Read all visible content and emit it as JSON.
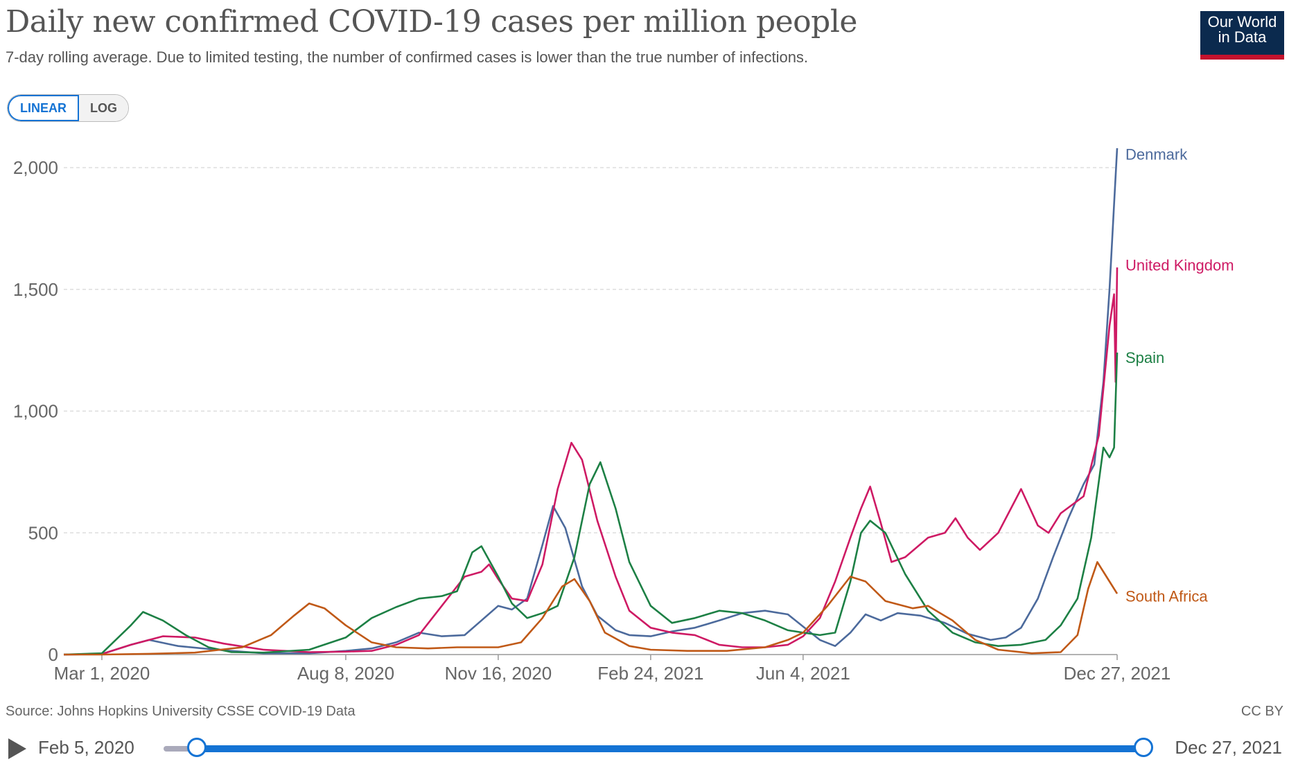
{
  "header": {
    "title": "Daily new confirmed COVID-19 cases per million people",
    "subtitle": "7-day rolling average. Due to limited testing, the number of confirmed cases is lower than the true number of infections.",
    "logo_line1": "Our World",
    "logo_line2": "in Data"
  },
  "controls": {
    "linear_label": "LINEAR",
    "log_label": "LOG",
    "selected": "LINEAR"
  },
  "footer": {
    "source": "Source: Johns Hopkins University CSSE COVID-19 Data",
    "license": "CC BY"
  },
  "timeline": {
    "start_date": "Feb 5, 2020",
    "end_date": "Dec 27, 2021"
  },
  "chart_data": {
    "type": "line",
    "title": "Daily new confirmed COVID-19 cases per million people",
    "ylim": [
      0,
      2000
    ],
    "yticks": [
      0,
      500,
      1000,
      1500,
      2000
    ],
    "ytick_labels": [
      "0",
      "500",
      "1,000",
      "1,500",
      "2,000"
    ],
    "xrange": [
      "2020-02-05",
      "2021-12-27"
    ],
    "xticks": [
      {
        "date": "2020-03-01",
        "label": "Mar 1, 2020"
      },
      {
        "date": "2020-08-08",
        "label": "Aug 8, 2020"
      },
      {
        "date": "2020-11-16",
        "label": "Nov 16, 2020"
      },
      {
        "date": "2021-02-24",
        "label": "Feb 24, 2021"
      },
      {
        "date": "2021-06-04",
        "label": "Jun 4, 2021"
      },
      {
        "date": "2021-12-27",
        "label": "Dec 27, 2021"
      }
    ],
    "grid": true,
    "legend": "end-labels",
    "series": [
      {
        "name": "Denmark",
        "color": "#4c6a9c",
        "points": [
          [
            "2020-02-05",
            0
          ],
          [
            "2020-03-01",
            2
          ],
          [
            "2020-03-20",
            40
          ],
          [
            "2020-04-01",
            60
          ],
          [
            "2020-04-20",
            35
          ],
          [
            "2020-05-15",
            20
          ],
          [
            "2020-06-15",
            5
          ],
          [
            "2020-07-15",
            5
          ],
          [
            "2020-08-08",
            15
          ],
          [
            "2020-08-25",
            25
          ],
          [
            "2020-09-10",
            50
          ],
          [
            "2020-09-25",
            90
          ],
          [
            "2020-10-10",
            75
          ],
          [
            "2020-10-25",
            80
          ],
          [
            "2020-11-05",
            140
          ],
          [
            "2020-11-16",
            200
          ],
          [
            "2020-11-25",
            185
          ],
          [
            "2020-12-05",
            230
          ],
          [
            "2020-12-15",
            450
          ],
          [
            "2020-12-22",
            610
          ],
          [
            "2020-12-30",
            520
          ],
          [
            "2021-01-10",
            280
          ],
          [
            "2021-01-20",
            160
          ],
          [
            "2021-02-01",
            100
          ],
          [
            "2021-02-10",
            80
          ],
          [
            "2021-02-24",
            75
          ],
          [
            "2021-03-10",
            95
          ],
          [
            "2021-03-25",
            110
          ],
          [
            "2021-04-10",
            140
          ],
          [
            "2021-04-25",
            170
          ],
          [
            "2021-05-10",
            180
          ],
          [
            "2021-05-25",
            165
          ],
          [
            "2021-06-04",
            115
          ],
          [
            "2021-06-15",
            60
          ],
          [
            "2021-06-25",
            35
          ],
          [
            "2021-07-05",
            90
          ],
          [
            "2021-07-15",
            165
          ],
          [
            "2021-07-25",
            140
          ],
          [
            "2021-08-05",
            170
          ],
          [
            "2021-08-20",
            160
          ],
          [
            "2021-09-05",
            130
          ],
          [
            "2021-09-20",
            85
          ],
          [
            "2021-10-05",
            60
          ],
          [
            "2021-10-15",
            70
          ],
          [
            "2021-10-25",
            110
          ],
          [
            "2021-11-05",
            230
          ],
          [
            "2021-11-15",
            400
          ],
          [
            "2021-11-25",
            560
          ],
          [
            "2021-12-05",
            700
          ],
          [
            "2021-12-12",
            780
          ],
          [
            "2021-12-18",
            1120
          ],
          [
            "2021-12-22",
            1500
          ],
          [
            "2021-12-25",
            1850
          ],
          [
            "2021-12-27",
            2080
          ]
        ]
      },
      {
        "name": "United Kingdom",
        "color": "#ce1a64",
        "points": [
          [
            "2020-02-05",
            0
          ],
          [
            "2020-03-01",
            2
          ],
          [
            "2020-03-20",
            40
          ],
          [
            "2020-04-10",
            75
          ],
          [
            "2020-05-01",
            70
          ],
          [
            "2020-05-20",
            45
          ],
          [
            "2020-06-15",
            20
          ],
          [
            "2020-07-15",
            10
          ],
          [
            "2020-08-08",
            12
          ],
          [
            "2020-08-25",
            15
          ],
          [
            "2020-09-10",
            40
          ],
          [
            "2020-09-25",
            80
          ],
          [
            "2020-10-10",
            200
          ],
          [
            "2020-10-25",
            320
          ],
          [
            "2020-11-05",
            340
          ],
          [
            "2020-11-10",
            370
          ],
          [
            "2020-11-16",
            310
          ],
          [
            "2020-11-25",
            230
          ],
          [
            "2020-12-05",
            220
          ],
          [
            "2020-12-15",
            370
          ],
          [
            "2020-12-25",
            680
          ],
          [
            "2021-01-03",
            870
          ],
          [
            "2021-01-10",
            800
          ],
          [
            "2021-01-20",
            550
          ],
          [
            "2021-02-01",
            320
          ],
          [
            "2021-02-10",
            180
          ],
          [
            "2021-02-24",
            110
          ],
          [
            "2021-03-10",
            90
          ],
          [
            "2021-03-25",
            80
          ],
          [
            "2021-04-10",
            40
          ],
          [
            "2021-04-25",
            30
          ],
          [
            "2021-05-10",
            30
          ],
          [
            "2021-05-25",
            40
          ],
          [
            "2021-06-04",
            75
          ],
          [
            "2021-06-15",
            150
          ],
          [
            "2021-06-25",
            300
          ],
          [
            "2021-07-05",
            480
          ],
          [
            "2021-07-12",
            600
          ],
          [
            "2021-07-18",
            690
          ],
          [
            "2021-07-25",
            540
          ],
          [
            "2021-08-01",
            380
          ],
          [
            "2021-08-10",
            400
          ],
          [
            "2021-08-25",
            480
          ],
          [
            "2021-09-05",
            500
          ],
          [
            "2021-09-12",
            560
          ],
          [
            "2021-09-20",
            480
          ],
          [
            "2021-09-28",
            430
          ],
          [
            "2021-10-10",
            500
          ],
          [
            "2021-10-20",
            620
          ],
          [
            "2021-10-25",
            680
          ],
          [
            "2021-11-05",
            530
          ],
          [
            "2021-11-12",
            500
          ],
          [
            "2021-11-20",
            580
          ],
          [
            "2021-12-05",
            650
          ],
          [
            "2021-12-15",
            900
          ],
          [
            "2021-12-22",
            1350
          ],
          [
            "2021-12-25",
            1480
          ],
          [
            "2021-12-26",
            1120
          ],
          [
            "2021-12-27",
            1590
          ]
        ]
      },
      {
        "name": "Spain",
        "color": "#1d8045",
        "points": [
          [
            "2020-02-05",
            0
          ],
          [
            "2020-03-01",
            5
          ],
          [
            "2020-03-20",
            120
          ],
          [
            "2020-03-28",
            175
          ],
          [
            "2020-04-10",
            140
          ],
          [
            "2020-04-25",
            80
          ],
          [
            "2020-05-10",
            30
          ],
          [
            "2020-05-25",
            10
          ],
          [
            "2020-06-15",
            8
          ],
          [
            "2020-07-15",
            20
          ],
          [
            "2020-08-08",
            70
          ],
          [
            "2020-08-25",
            150
          ],
          [
            "2020-09-10",
            195
          ],
          [
            "2020-09-25",
            230
          ],
          [
            "2020-10-10",
            240
          ],
          [
            "2020-10-20",
            260
          ],
          [
            "2020-10-30",
            420
          ],
          [
            "2020-11-05",
            445
          ],
          [
            "2020-11-16",
            320
          ],
          [
            "2020-11-25",
            210
          ],
          [
            "2020-12-05",
            150
          ],
          [
            "2020-12-15",
            170
          ],
          [
            "2020-12-25",
            200
          ],
          [
            "2021-01-05",
            400
          ],
          [
            "2021-01-15",
            700
          ],
          [
            "2021-01-22",
            790
          ],
          [
            "2021-02-01",
            600
          ],
          [
            "2021-02-10",
            380
          ],
          [
            "2021-02-24",
            200
          ],
          [
            "2021-03-10",
            130
          ],
          [
            "2021-03-25",
            150
          ],
          [
            "2021-04-10",
            180
          ],
          [
            "2021-04-25",
            170
          ],
          [
            "2021-05-10",
            140
          ],
          [
            "2021-05-25",
            100
          ],
          [
            "2021-06-04",
            90
          ],
          [
            "2021-06-15",
            80
          ],
          [
            "2021-06-25",
            90
          ],
          [
            "2021-07-05",
            300
          ],
          [
            "2021-07-12",
            500
          ],
          [
            "2021-07-18",
            550
          ],
          [
            "2021-07-28",
            500
          ],
          [
            "2021-08-10",
            330
          ],
          [
            "2021-08-25",
            180
          ],
          [
            "2021-09-10",
            90
          ],
          [
            "2021-09-25",
            50
          ],
          [
            "2021-10-10",
            35
          ],
          [
            "2021-10-25",
            40
          ],
          [
            "2021-11-10",
            60
          ],
          [
            "2021-11-20",
            120
          ],
          [
            "2021-12-01",
            230
          ],
          [
            "2021-12-10",
            480
          ],
          [
            "2021-12-18",
            850
          ],
          [
            "2021-12-22",
            810
          ],
          [
            "2021-12-25",
            850
          ],
          [
            "2021-12-27",
            1240
          ]
        ]
      },
      {
        "name": "South Africa",
        "color": "#c05917",
        "points": [
          [
            "2020-02-05",
            0
          ],
          [
            "2020-03-01",
            0
          ],
          [
            "2020-04-01",
            3
          ],
          [
            "2020-05-01",
            8
          ],
          [
            "2020-06-01",
            30
          ],
          [
            "2020-06-20",
            80
          ],
          [
            "2020-07-05",
            160
          ],
          [
            "2020-07-15",
            210
          ],
          [
            "2020-07-25",
            190
          ],
          [
            "2020-08-08",
            120
          ],
          [
            "2020-08-25",
            50
          ],
          [
            "2020-09-10",
            30
          ],
          [
            "2020-10-01",
            25
          ],
          [
            "2020-10-20",
            30
          ],
          [
            "2020-11-16",
            30
          ],
          [
            "2020-12-01",
            50
          ],
          [
            "2020-12-15",
            150
          ],
          [
            "2020-12-28",
            280
          ],
          [
            "2021-01-05",
            310
          ],
          [
            "2021-01-15",
            220
          ],
          [
            "2021-01-25",
            90
          ],
          [
            "2021-02-10",
            35
          ],
          [
            "2021-02-24",
            20
          ],
          [
            "2021-03-20",
            15
          ],
          [
            "2021-04-15",
            15
          ],
          [
            "2021-05-10",
            30
          ],
          [
            "2021-05-25",
            60
          ],
          [
            "2021-06-04",
            90
          ],
          [
            "2021-06-20",
            200
          ],
          [
            "2021-07-05",
            320
          ],
          [
            "2021-07-15",
            300
          ],
          [
            "2021-07-28",
            220
          ],
          [
            "2021-08-15",
            190
          ],
          [
            "2021-08-25",
            200
          ],
          [
            "2021-09-10",
            140
          ],
          [
            "2021-09-25",
            60
          ],
          [
            "2021-10-10",
            20
          ],
          [
            "2021-11-01",
            5
          ],
          [
            "2021-11-20",
            10
          ],
          [
            "2021-12-01",
            80
          ],
          [
            "2021-12-08",
            270
          ],
          [
            "2021-12-14",
            380
          ],
          [
            "2021-12-20",
            320
          ],
          [
            "2021-12-27",
            250
          ]
        ]
      }
    ]
  }
}
